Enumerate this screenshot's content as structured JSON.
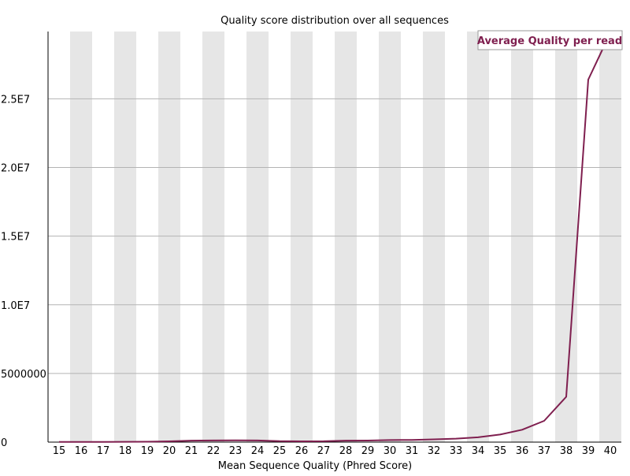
{
  "chart_data": {
    "type": "line",
    "title": "Quality score distribution over all sequences",
    "xlabel": "Mean Sequence Quality (Phred Score)",
    "ylabel": "",
    "x": [
      15,
      16,
      17,
      18,
      19,
      20,
      21,
      22,
      23,
      24,
      25,
      26,
      27,
      28,
      29,
      30,
      31,
      32,
      33,
      34,
      35,
      36,
      37,
      38,
      39,
      40
    ],
    "x_tick_labels": [
      "15",
      "16",
      "17",
      "18",
      "19",
      "20",
      "21",
      "22",
      "23",
      "24",
      "25",
      "26",
      "27",
      "28",
      "29",
      "30",
      "31",
      "32",
      "33",
      "34",
      "35",
      "36",
      "37",
      "38",
      "39",
      "40"
    ],
    "series": [
      {
        "name": "Average Quality per read",
        "color": "#7f1f4f",
        "values": [
          10000,
          15000,
          20000,
          25000,
          30000,
          60000,
          110000,
          120000,
          125000,
          120000,
          70000,
          60000,
          65000,
          110000,
          115000,
          150000,
          160000,
          200000,
          250000,
          350000,
          550000,
          900000,
          1550000,
          3300000,
          26400000,
          29800000
        ]
      }
    ],
    "ylim": [
      0,
      29900000
    ],
    "y_ticks": [
      {
        "value": 0,
        "label": "0"
      },
      {
        "value": 5000000,
        "label": "5000000"
      },
      {
        "value": 10000000,
        "label": "1.0E7"
      },
      {
        "value": 15000000,
        "label": "1.5E7"
      },
      {
        "value": 20000000,
        "label": "2.0E7"
      },
      {
        "value": 25000000,
        "label": "2.5E7"
      }
    ],
    "grid": true,
    "legend": "top-right",
    "colors": {
      "band": "#e6e6e6",
      "grid": "#b3b3b3",
      "axis": "#000000",
      "legend_text": "#7f1f4f"
    }
  }
}
